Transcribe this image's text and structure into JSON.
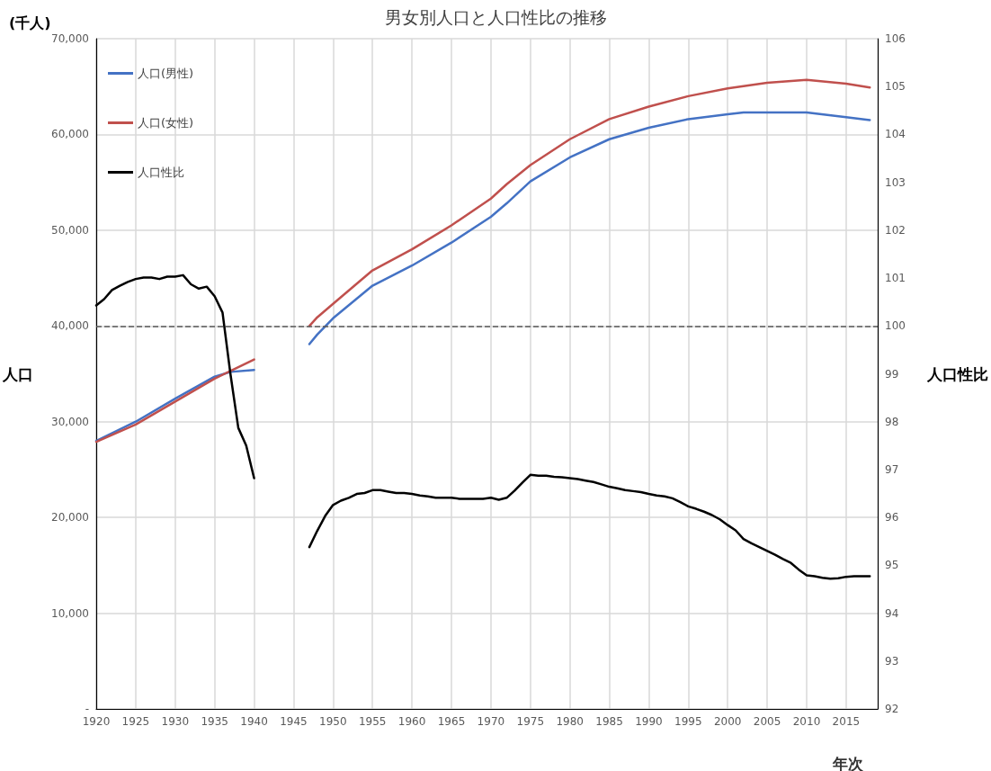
{
  "chart_data": {
    "type": "line",
    "title": "男女別人口と人口性比の推移",
    "xlabel": "年次",
    "ylabel": "人口",
    "y2label": "人口性比",
    "annotations": [
      "(千人)"
    ],
    "xlim": [
      1920,
      2019
    ],
    "xticks": [
      1920,
      1925,
      1930,
      1935,
      1940,
      1945,
      1950,
      1955,
      1960,
      1965,
      1970,
      1975,
      1980,
      1985,
      1990,
      1995,
      2000,
      2005,
      2010,
      2015
    ],
    "ylim": [
      0,
      70000
    ],
    "yticks": [
      {
        "value": 0,
        "label": "-"
      },
      {
        "value": 10000,
        "label": "10,000"
      },
      {
        "value": 20000,
        "label": "20,000"
      },
      {
        "value": 30000,
        "label": "30,000"
      },
      {
        "value": 40000,
        "label": "40,000"
      },
      {
        "value": 50000,
        "label": "50,000"
      },
      {
        "value": 60000,
        "label": "60,000"
      },
      {
        "value": 70000,
        "label": "70,000"
      }
    ],
    "y2lim": [
      92,
      106
    ],
    "y2ticks": [
      92,
      93,
      94,
      95,
      96,
      97,
      98,
      99,
      100,
      101,
      102,
      103,
      104,
      105,
      106
    ],
    "grid": true,
    "legend": "top left",
    "marker": "none",
    "line_style": "solid",
    "ref_lines": [
      {
        "axis": "y2",
        "value": 100,
        "color": "#595959",
        "line_style": "dashed"
      }
    ],
    "series": [
      {
        "name": "人口(男性)",
        "color": "#4472c4",
        "x": [
          1920,
          1925,
          1930,
          1935,
          1937,
          1940,
          1944,
          1947,
          1948,
          1950,
          1955,
          1960,
          1965,
          1970,
          1972,
          1975,
          1980,
          1985,
          1990,
          1995,
          2000,
          2002,
          2005,
          2010,
          2015,
          2018
        ],
        "values": [
          28000,
          30000,
          32400,
          34700,
          35200,
          35400,
          null,
          38100,
          39100,
          40800,
          44200,
          46300,
          48700,
          51400,
          52800,
          55100,
          57600,
          59500,
          60700,
          61600,
          62100,
          62300,
          62300,
          62300,
          61800,
          61500
        ]
      },
      {
        "name": "人口(女性)",
        "color": "#c0504d",
        "x": [
          1920,
          1925,
          1930,
          1935,
          1937,
          1940,
          1944,
          1947,
          1948,
          1950,
          1955,
          1960,
          1965,
          1970,
          1972,
          1975,
          1980,
          1985,
          1990,
          1995,
          2000,
          2005,
          2010,
          2015,
          2018
        ],
        "values": [
          27900,
          29700,
          32100,
          34500,
          35300,
          36500,
          null,
          40000,
          40900,
          42300,
          45800,
          48000,
          50500,
          53300,
          54800,
          56800,
          59500,
          61600,
          62900,
          64000,
          64800,
          65400,
          65700,
          65300,
          64900
        ]
      },
      {
        "name": "人口性比",
        "color": "#000000",
        "axis": "y2",
        "x": [
          1920,
          1921,
          1922,
          1923,
          1924,
          1925,
          1926,
          1927,
          1928,
          1929,
          1930,
          1931,
          1932,
          1933,
          1934,
          1935,
          1936,
          1937,
          1938,
          1939,
          1940,
          1944,
          1947,
          1948,
          1949,
          1950,
          1951,
          1952,
          1953,
          1954,
          1955,
          1956,
          1957,
          1958,
          1959,
          1960,
          1961,
          1962,
          1963,
          1964,
          1965,
          1966,
          1967,
          1968,
          1969,
          1970,
          1971,
          1972,
          1973,
          1974,
          1975,
          1976,
          1977,
          1978,
          1979,
          1980,
          1981,
          1982,
          1983,
          1984,
          1985,
          1986,
          1987,
          1988,
          1989,
          1990,
          1991,
          1992,
          1993,
          1994,
          1995,
          1996,
          1997,
          1998,
          1999,
          2000,
          2001,
          2002,
          2003,
          2004,
          2005,
          2006,
          2007,
          2008,
          2009,
          2010,
          2011,
          2012,
          2013,
          2014,
          2015,
          2016,
          2017,
          2018
        ],
        "values": [
          100.43,
          100.56,
          100.75,
          100.84,
          100.92,
          100.98,
          101.01,
          101.01,
          100.98,
          101.03,
          101.03,
          101.06,
          100.87,
          100.78,
          100.82,
          100.62,
          100.28,
          99.0,
          97.87,
          97.5,
          96.82,
          null,
          95.38,
          95.72,
          96.03,
          96.26,
          96.35,
          96.41,
          96.49,
          96.51,
          96.57,
          96.57,
          96.54,
          96.51,
          96.51,
          96.49,
          96.46,
          96.44,
          96.41,
          96.41,
          96.41,
          96.39,
          96.39,
          96.39,
          96.39,
          96.41,
          96.37,
          96.41,
          96.56,
          96.73,
          96.89,
          96.87,
          96.87,
          96.85,
          96.84,
          96.82,
          96.8,
          96.77,
          96.74,
          96.69,
          96.64,
          96.61,
          96.57,
          96.55,
          96.53,
          96.49,
          96.46,
          96.44,
          96.4,
          96.32,
          96.23,
          96.18,
          96.12,
          96.05,
          95.96,
          95.84,
          95.73,
          95.55,
          95.46,
          95.38,
          95.3,
          95.22,
          95.13,
          95.05,
          94.91,
          94.79,
          94.77,
          94.74,
          94.72,
          94.73,
          94.76,
          94.77,
          94.77,
          94.77
        ]
      }
    ]
  }
}
